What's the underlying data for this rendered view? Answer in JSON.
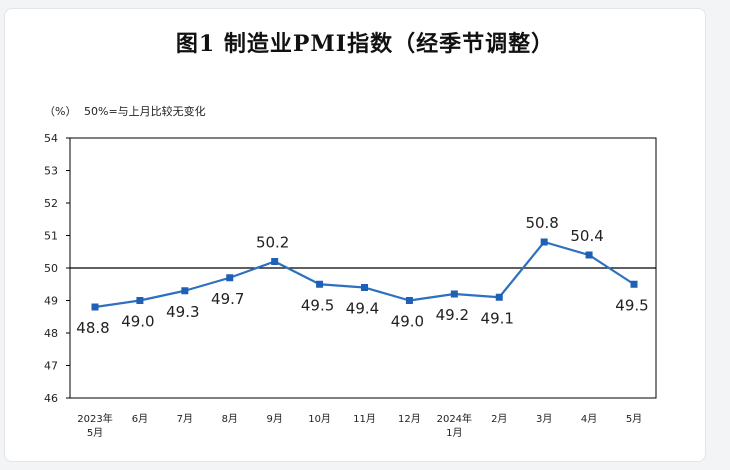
{
  "page": {
    "title": "图1  制造业PMI指数（经季节调整）"
  },
  "chart_data": {
    "type": "line",
    "title": "图1  制造业PMI指数（经季节调整）",
    "ylabel": "（%）",
    "annotation": "50%=与上月比较无变化",
    "ylim": [
      46,
      54
    ],
    "yticks": [
      46,
      47,
      48,
      49,
      50,
      51,
      52,
      53,
      54
    ],
    "reference_line": 50,
    "categories": [
      [
        "2023年",
        "5月"
      ],
      [
        "6月"
      ],
      [
        "7月"
      ],
      [
        "8月"
      ],
      [
        "9月"
      ],
      [
        "10月"
      ],
      [
        "11月"
      ],
      [
        "12月"
      ],
      [
        "2024年",
        "1月"
      ],
      [
        "2月"
      ],
      [
        "3月"
      ],
      [
        "4月"
      ],
      [
        "5月"
      ]
    ],
    "series": [
      {
        "values": [
          48.8,
          49.0,
          49.3,
          49.7,
          50.2,
          49.5,
          49.4,
          49.0,
          49.2,
          49.1,
          50.8,
          50.4,
          49.5
        ],
        "labels": [
          "48.8",
          "49.0",
          "49.3",
          "49.7",
          "50.2",
          "49.5",
          "49.4",
          "49.0",
          "49.2",
          "49.1",
          "50.8",
          "50.4",
          "49.5"
        ],
        "label_positions": [
          "below",
          "below",
          "below",
          "below",
          "above",
          "below",
          "below",
          "below",
          "below",
          "below",
          "above",
          "above",
          "below"
        ]
      }
    ],
    "colors": {
      "line": "#2d6fc0",
      "marker": "#1f5fb4",
      "axis": "#000000"
    },
    "grid": false,
    "legend": "none"
  }
}
